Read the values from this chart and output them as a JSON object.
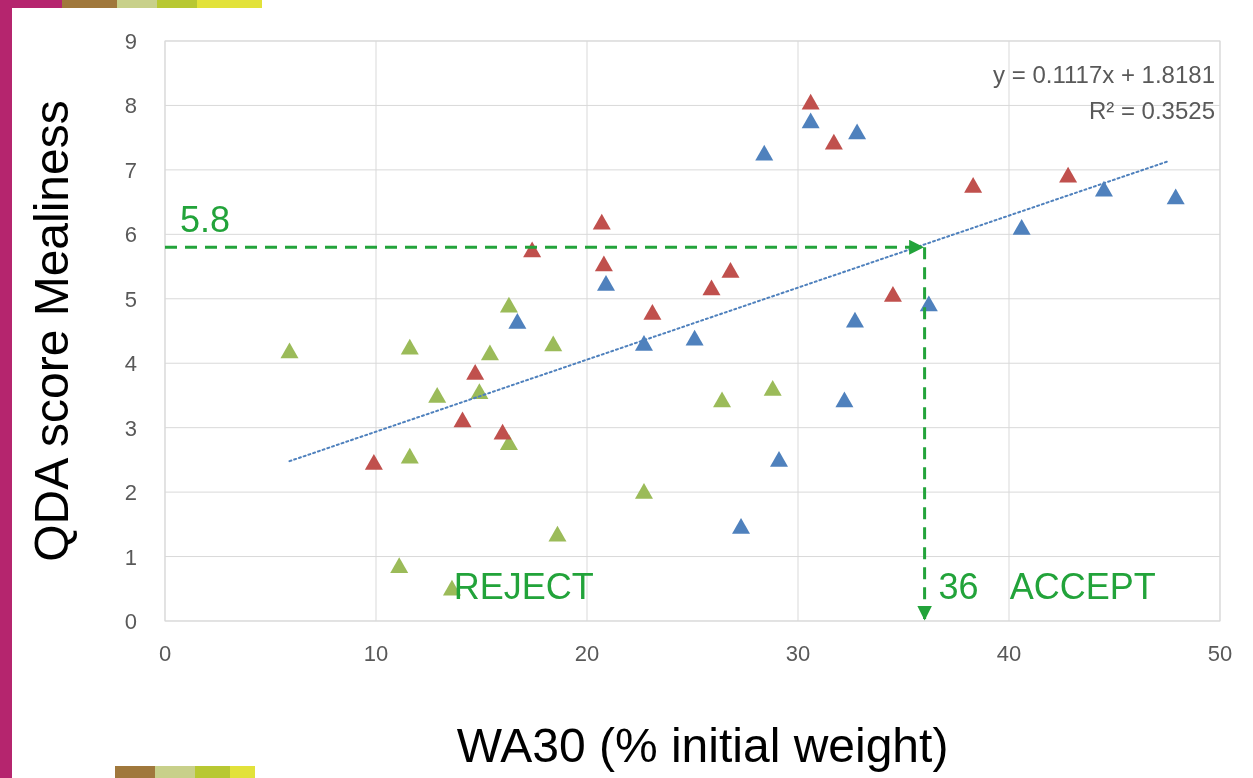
{
  "chart_data": {
    "type": "scatter",
    "xlabel": "WA30 (% initial weight)",
    "ylabel": "QDA score Mealiness",
    "xlim": [
      0,
      50
    ],
    "xticks": [
      0,
      10,
      20,
      30,
      40,
      50
    ],
    "ylim": [
      0,
      9
    ],
    "yticks": [
      0,
      1,
      2,
      3,
      4,
      5,
      6,
      7,
      8,
      9
    ],
    "grid": true,
    "marker": "triangle",
    "series": [
      {
        "color": "#9bbb59",
        "x": [
          5.9,
          11.6,
          12.9,
          14.9,
          15.4,
          16.3,
          16.3,
          18.4,
          11.6,
          11.1,
          13.6,
          18.6,
          22.7,
          26.4,
          28.8
        ],
        "values": [
          4.18,
          4.24,
          3.49,
          3.55,
          4.15,
          4.89,
          2.76,
          4.29,
          2.55,
          0.85,
          0.5,
          1.34,
          2.0,
          3.42,
          3.6
        ]
      },
      {
        "color": "#c0504d",
        "x": [
          9.9,
          14.1,
          14.7,
          16.0,
          17.4,
          20.7,
          20.8,
          23.1,
          25.9,
          26.8,
          30.6,
          31.7,
          34.5,
          38.3,
          42.8
        ],
        "values": [
          2.45,
          3.11,
          3.85,
          2.92,
          5.75,
          6.18,
          5.53,
          4.78,
          5.16,
          5.43,
          8.04,
          7.42,
          5.06,
          6.75,
          6.91
        ]
      },
      {
        "color": "#4f81bd",
        "x": [
          16.7,
          20.9,
          22.7,
          25.1,
          27.3,
          28.4,
          29.1,
          30.6,
          32.2,
          32.8,
          32.7,
          36.2,
          40.6,
          44.5,
          47.9
        ],
        "values": [
          4.64,
          5.23,
          4.3,
          4.38,
          1.46,
          7.25,
          2.5,
          7.75,
          3.42,
          7.58,
          4.66,
          4.91,
          6.1,
          6.69,
          6.57
        ]
      },
      {
        "type": "line",
        "color": "#4f81bd",
        "line_style": "dotted",
        "marker": "none",
        "x": [
          5.9,
          47.6
        ],
        "values": [
          2.48,
          7.14
        ]
      }
    ],
    "ref_lines": [
      {
        "axis": "y",
        "value": 5.8,
        "label": "5.8",
        "color": "#22a33a",
        "line_style": "dashed"
      },
      {
        "axis": "x",
        "value": 36,
        "label": "36",
        "color": "#22a33a",
        "line_style": "dashed"
      }
    ],
    "annotations": [
      "y = 0.1117x + 1.8181",
      "R² = 0.3525",
      "REJECT",
      "ACCEPT"
    ]
  }
}
